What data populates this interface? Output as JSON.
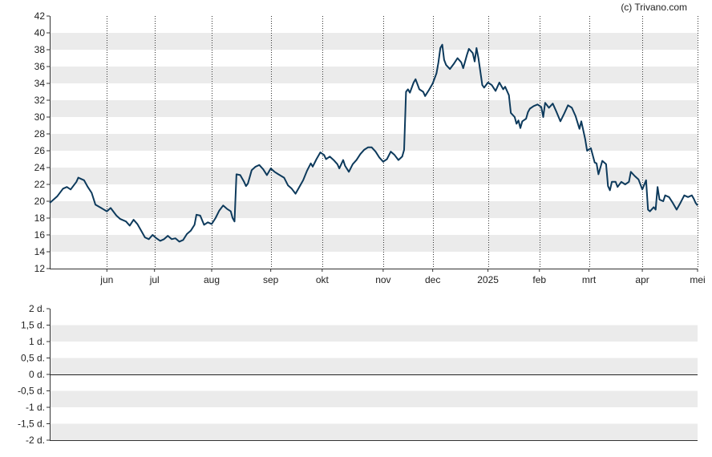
{
  "copyright": "(c) Trivano.com",
  "chart_data": [
    {
      "type": "line",
      "xlabel": "",
      "ylabel": "",
      "ylim": [
        12,
        42
      ],
      "yticks": [
        "12",
        "14",
        "16",
        "18",
        "20",
        "22",
        "24",
        "26",
        "28",
        "30",
        "32",
        "34",
        "36",
        "38",
        "40",
        "42"
      ],
      "xticks": [
        "jun",
        "jul",
        "aug",
        "sep",
        "okt",
        "nov",
        "dec",
        "2025",
        "feb",
        "mrt",
        "apr",
        "mei"
      ],
      "x_period": [
        "2024-05",
        "2025-05"
      ],
      "grid": "alternating horizontal bands, dotted vertical lines at month ticks",
      "line_color": "#0d3a5c",
      "series": [
        {
          "values": [
            [
              0,
              19.8
            ],
            [
              4,
              20.6
            ],
            [
              7,
              21.5
            ],
            [
              9,
              21.7
            ],
            [
              11,
              21.4
            ],
            [
              14,
              22.3
            ],
            [
              15,
              22.8
            ],
            [
              18,
              22.5
            ],
            [
              20,
              21.7
            ],
            [
              22,
              21.0
            ],
            [
              24,
              19.6
            ],
            [
              27,
              19.2
            ],
            [
              30,
              18.8
            ],
            [
              32,
              19.2
            ],
            [
              35,
              18.3
            ],
            [
              37,
              17.9
            ],
            [
              40,
              17.6
            ],
            [
              42,
              17.1
            ],
            [
              44,
              17.8
            ],
            [
              46,
              17.3
            ],
            [
              48,
              16.5
            ],
            [
              50,
              15.7
            ],
            [
              52,
              15.5
            ],
            [
              54,
              16.0
            ],
            [
              56,
              15.6
            ],
            [
              58,
              15.3
            ],
            [
              60,
              15.5
            ],
            [
              62,
              15.9
            ],
            [
              64,
              15.5
            ],
            [
              66,
              15.6
            ],
            [
              68,
              15.2
            ],
            [
              70,
              15.4
            ],
            [
              72,
              16.1
            ],
            [
              74,
              16.5
            ],
            [
              76,
              17.2
            ],
            [
              77,
              18.4
            ],
            [
              79,
              18.3
            ],
            [
              81,
              17.2
            ],
            [
              83,
              17.5
            ],
            [
              85,
              17.3
            ],
            [
              87,
              18.0
            ],
            [
              89,
              18.9
            ],
            [
              91,
              19.5
            ],
            [
              93,
              19.1
            ],
            [
              95,
              18.8
            ],
            [
              96,
              18.0
            ],
            [
              97,
              17.6
            ],
            [
              98,
              23.2
            ],
            [
              100,
              23.1
            ],
            [
              102,
              22.3
            ],
            [
              103,
              21.8
            ],
            [
              104,
              22.1
            ],
            [
              106,
              23.7
            ],
            [
              108,
              24.1
            ],
            [
              110,
              24.3
            ],
            [
              112,
              23.8
            ],
            [
              114,
              23.1
            ],
            [
              116,
              23.9
            ],
            [
              118,
              23.5
            ],
            [
              120,
              23.2
            ],
            [
              123,
              22.8
            ],
            [
              125,
              21.9
            ],
            [
              127,
              21.5
            ],
            [
              129,
              20.9
            ],
            [
              131,
              21.7
            ],
            [
              133,
              22.5
            ],
            [
              135,
              23.6
            ],
            [
              137,
              24.5
            ],
            [
              138,
              24.1
            ],
            [
              140,
              25.0
            ],
            [
              142,
              25.8
            ],
            [
              144,
              25.5
            ],
            [
              145,
              25.0
            ],
            [
              147,
              25.3
            ],
            [
              149,
              24.9
            ],
            [
              151,
              24.4
            ],
            [
              152,
              23.9
            ],
            [
              154,
              24.9
            ],
            [
              155,
              24.2
            ],
            [
              157,
              23.5
            ],
            [
              159,
              24.4
            ],
            [
              161,
              24.9
            ],
            [
              163,
              25.6
            ],
            [
              165,
              26.1
            ],
            [
              167,
              26.4
            ],
            [
              169,
              26.4
            ],
            [
              171,
              25.9
            ],
            [
              173,
              25.2
            ],
            [
              175,
              24.7
            ],
            [
              177,
              25.0
            ],
            [
              179,
              25.9
            ],
            [
              181,
              25.5
            ],
            [
              183,
              24.9
            ],
            [
              185,
              25.3
            ],
            [
              186,
              26.1
            ],
            [
              187,
              33.0
            ],
            [
              188,
              33.3
            ],
            [
              189,
              32.9
            ],
            [
              191,
              34.1
            ],
            [
              192,
              34.5
            ],
            [
              194,
              33.3
            ],
            [
              196,
              33.0
            ],
            [
              197,
              32.5
            ],
            [
              199,
              33.2
            ],
            [
              201,
              34.0
            ],
            [
              203,
              35.2
            ],
            [
              204,
              36.5
            ],
            [
              205,
              38.2
            ],
            [
              206,
              38.6
            ],
            [
              207,
              36.8
            ],
            [
              208,
              36.2
            ],
            [
              210,
              35.7
            ],
            [
              212,
              36.3
            ],
            [
              214,
              37.0
            ],
            [
              216,
              36.5
            ],
            [
              217,
              35.8
            ],
            [
              219,
              37.4
            ],
            [
              220,
              38.1
            ],
            [
              222,
              37.6
            ],
            [
              223,
              36.6
            ],
            [
              224,
              38.2
            ],
            [
              225,
              37.0
            ],
            [
              227,
              33.8
            ],
            [
              228,
              33.5
            ],
            [
              230,
              34.1
            ],
            [
              232,
              33.8
            ],
            [
              234,
              33.1
            ],
            [
              236,
              34.1
            ],
            [
              238,
              33.3
            ],
            [
              239,
              33.6
            ],
            [
              241,
              32.6
            ],
            [
              242,
              30.5
            ],
            [
              244,
              30.0
            ],
            [
              245,
              29.2
            ],
            [
              246,
              29.6
            ],
            [
              247,
              28.7
            ],
            [
              248,
              29.5
            ],
            [
              250,
              29.8
            ],
            [
              251,
              30.6
            ],
            [
              252,
              31.0
            ],
            [
              254,
              31.3
            ],
            [
              256,
              31.5
            ],
            [
              258,
              31.2
            ],
            [
              259,
              30.0
            ],
            [
              260,
              31.7
            ],
            [
              262,
              31.1
            ],
            [
              264,
              31.6
            ],
            [
              266,
              30.6
            ],
            [
              268,
              29.5
            ],
            [
              270,
              30.4
            ],
            [
              272,
              31.4
            ],
            [
              274,
              31.1
            ],
            [
              276,
              30.1
            ],
            [
              278,
              28.6
            ],
            [
              279,
              29.5
            ],
            [
              281,
              27.4
            ],
            [
              282,
              26.0
            ],
            [
              284,
              26.3
            ],
            [
              286,
              24.6
            ],
            [
              287,
              24.5
            ],
            [
              288,
              23.2
            ],
            [
              290,
              24.8
            ],
            [
              292,
              24.4
            ],
            [
              293,
              21.8
            ],
            [
              294,
              21.3
            ],
            [
              295,
              22.3
            ],
            [
              297,
              22.3
            ],
            [
              298,
              21.7
            ],
            [
              300,
              22.3
            ],
            [
              302,
              22.0
            ],
            [
              304,
              22.3
            ],
            [
              305,
              23.5
            ],
            [
              307,
              23.0
            ],
            [
              309,
              22.6
            ],
            [
              311,
              21.4
            ],
            [
              313,
              22.5
            ],
            [
              314,
              19.0
            ],
            [
              315,
              18.8
            ],
            [
              317,
              19.3
            ],
            [
              318,
              19.0
            ],
            [
              319,
              21.7
            ],
            [
              320,
              20.2
            ],
            [
              322,
              20.0
            ],
            [
              323,
              20.7
            ],
            [
              325,
              20.5
            ],
            [
              327,
              19.8
            ],
            [
              329,
              19.0
            ],
            [
              331,
              19.8
            ],
            [
              333,
              20.7
            ],
            [
              335,
              20.5
            ],
            [
              337,
              20.7
            ],
            [
              338,
              20.3
            ],
            [
              339,
              19.8
            ],
            [
              340,
              19.5
            ]
          ]
        }
      ],
      "x_range": [
        0,
        340
      ],
      "xtick_positions": [
        30,
        55,
        85,
        116,
        143,
        175,
        201,
        230,
        257,
        283,
        311,
        340
      ]
    },
    {
      "type": "line",
      "xlabel": "",
      "ylabel": "",
      "ylim": [
        -2,
        2
      ],
      "yticks": [
        "-2 d.",
        "-1,5 d.",
        "-1 d.",
        "-0,5 d.",
        "0 d.",
        "0,5 d.",
        "1 d.",
        "1,5 d.",
        "2 d."
      ],
      "reference_line": 0,
      "grid": "alternating horizontal bands",
      "series": []
    }
  ]
}
